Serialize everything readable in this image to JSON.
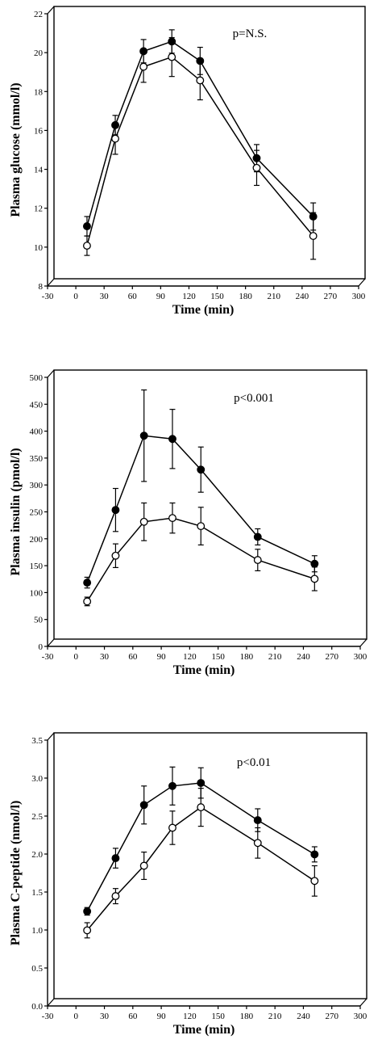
{
  "chart_data": [
    {
      "type": "line",
      "title": "",
      "xlabel": "Time (min)",
      "ylabel": "Plasma glucose (mmol/l)",
      "annotation": "p=N.S.",
      "xlim": [
        -30,
        300
      ],
      "ylim": [
        8,
        22
      ],
      "xticks": [
        "-30",
        "0",
        "30",
        "60",
        "90",
        "120",
        "150",
        "180",
        "210",
        "240",
        "270",
        "300"
      ],
      "yticks": [
        "8",
        "10",
        "12",
        "14",
        "16",
        "18",
        "20",
        "22"
      ],
      "x": [
        5,
        35,
        65,
        95,
        125,
        185,
        245
      ],
      "grid": false,
      "legend": "none",
      "series": [
        {
          "marker": "filled-circle",
          "values": [
            10.7,
            15.9,
            19.7,
            20.2,
            19.2,
            14.2,
            11.2
          ],
          "errors": [
            0.5,
            0.5,
            0.6,
            0.6,
            0.7,
            0.7,
            0.7
          ]
        },
        {
          "marker": "open-circle",
          "values": [
            9.7,
            15.2,
            18.9,
            19.4,
            18.2,
            13.7,
            10.2
          ],
          "errors": [
            0.5,
            0.8,
            0.8,
            1.0,
            1.0,
            0.9,
            1.2
          ]
        }
      ]
    },
    {
      "type": "line",
      "title": "",
      "xlabel": "Time (min)",
      "ylabel": "Plasma insulin (pmol/l)",
      "annotation": "p<0.001",
      "xlim": [
        -30,
        300
      ],
      "ylim": [
        0,
        500
      ],
      "xticks": [
        "-30",
        "0",
        "30",
        "60",
        "90",
        "120",
        "150",
        "180",
        "210",
        "240",
        "270",
        "300"
      ],
      "yticks": [
        "0",
        "50",
        "100",
        "150",
        "200",
        "250",
        "300",
        "350",
        "400",
        "450",
        "500"
      ],
      "x": [
        5,
        35,
        65,
        95,
        125,
        185,
        245
      ],
      "grid": false,
      "legend": "none",
      "series": [
        {
          "marker": "filled-circle",
          "values": [
            105,
            240,
            378,
            372,
            315,
            190,
            140
          ],
          "errors": [
            10,
            40,
            85,
            55,
            42,
            15,
            15
          ]
        },
        {
          "marker": "open-circle",
          "values": [
            70,
            155,
            218,
            225,
            210,
            147,
            112
          ],
          "errors": [
            8,
            22,
            35,
            28,
            35,
            20,
            22
          ]
        }
      ]
    },
    {
      "type": "line",
      "title": "",
      "xlabel": "Time (min)",
      "ylabel": "Plasma C-peptide (nmol/l)",
      "annotation": "p<0.01",
      "xlim": [
        -30,
        300
      ],
      "ylim": [
        0,
        3.5
      ],
      "xticks": [
        "-30",
        "0",
        "30",
        "60",
        "90",
        "120",
        "150",
        "180",
        "210",
        "240",
        "270",
        "300"
      ],
      "yticks": [
        "0.0",
        "0.5",
        "1.0",
        "1.5",
        "2.0",
        "2.5",
        "3.0",
        "3.5"
      ],
      "x": [
        5,
        35,
        65,
        95,
        125,
        185,
        245
      ],
      "grid": false,
      "legend": "none",
      "series": [
        {
          "marker": "filled-circle",
          "values": [
            1.15,
            1.85,
            2.55,
            2.8,
            2.84,
            2.35,
            1.9
          ],
          "errors": [
            0.05,
            0.13,
            0.25,
            0.25,
            0.2,
            0.15,
            0.1
          ]
        },
        {
          "marker": "open-circle",
          "values": [
            0.9,
            1.35,
            1.75,
            2.25,
            2.52,
            2.05,
            1.55
          ],
          "errors": [
            0.1,
            0.1,
            0.18,
            0.22,
            0.25,
            0.2,
            0.2
          ]
        }
      ]
    }
  ]
}
